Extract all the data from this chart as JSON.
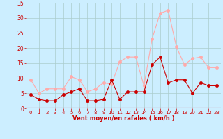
{
  "x": [
    0,
    1,
    2,
    3,
    4,
    5,
    6,
    7,
    8,
    9,
    10,
    11,
    12,
    13,
    14,
    15,
    16,
    17,
    18,
    19,
    20,
    21,
    22,
    23
  ],
  "wind_avg": [
    4.5,
    3.0,
    2.5,
    2.5,
    4.5,
    5.5,
    6.5,
    2.5,
    2.5,
    3.0,
    9.5,
    3.0,
    5.5,
    5.5,
    5.5,
    14.5,
    17.0,
    8.5,
    9.5,
    9.5,
    5.0,
    8.5,
    7.5,
    7.5
  ],
  "wind_gust": [
    9.5,
    5.0,
    6.5,
    6.5,
    6.5,
    10.5,
    9.5,
    5.5,
    6.5,
    8.5,
    8.0,
    15.5,
    17.0,
    17.0,
    7.5,
    23.0,
    31.5,
    32.5,
    20.5,
    14.5,
    16.5,
    17.0,
    13.5,
    13.5
  ],
  "avg_color": "#cc0000",
  "gust_color": "#ffaaaa",
  "bg_color": "#cceeff",
  "grid_color": "#aacccc",
  "xlabel": "Vent moyen/en rafales ( km/h )",
  "tick_color": "#cc0000",
  "ylim": [
    0,
    35
  ],
  "yticks": [
    0,
    5,
    10,
    15,
    20,
    25,
    30,
    35
  ],
  "marker_size": 2.5,
  "linewidth": 0.8
}
